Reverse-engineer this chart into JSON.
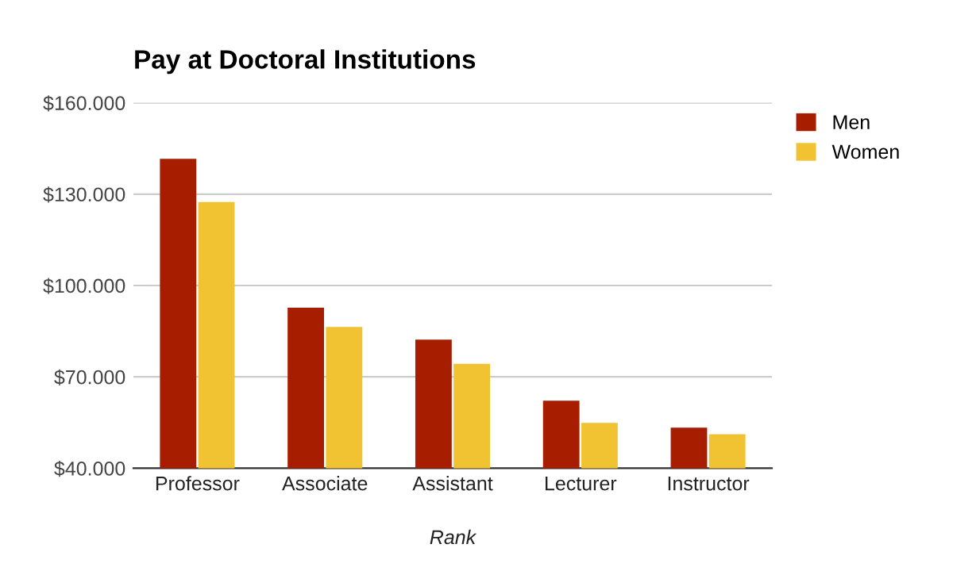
{
  "chart_data": {
    "type": "bar",
    "title": "Pay at Doctoral Institutions",
    "xlabel": "Rank",
    "categories": [
      "Professor",
      "Associate",
      "Assistant",
      "Lecturer",
      "Instructor"
    ],
    "series": [
      {
        "name": "Men",
        "color": "#a61d00",
        "values": [
          141600,
          92700,
          82200,
          62200,
          53300
        ]
      },
      {
        "name": "Women",
        "color": "#f1c232",
        "values": [
          127400,
          86400,
          74300,
          54900,
          51200
        ]
      }
    ],
    "ylim": [
      40000,
      160000
    ],
    "yticks": [
      {
        "value": 40000,
        "label": "$40.000"
      },
      {
        "value": 70000,
        "label": "$70.000"
      },
      {
        "value": 100000,
        "label": "$100.000"
      },
      {
        "value": 130000,
        "label": "$130.000"
      },
      {
        "value": 160000,
        "label": "$160.000"
      }
    ],
    "grid": "y",
    "legend": "top right"
  }
}
